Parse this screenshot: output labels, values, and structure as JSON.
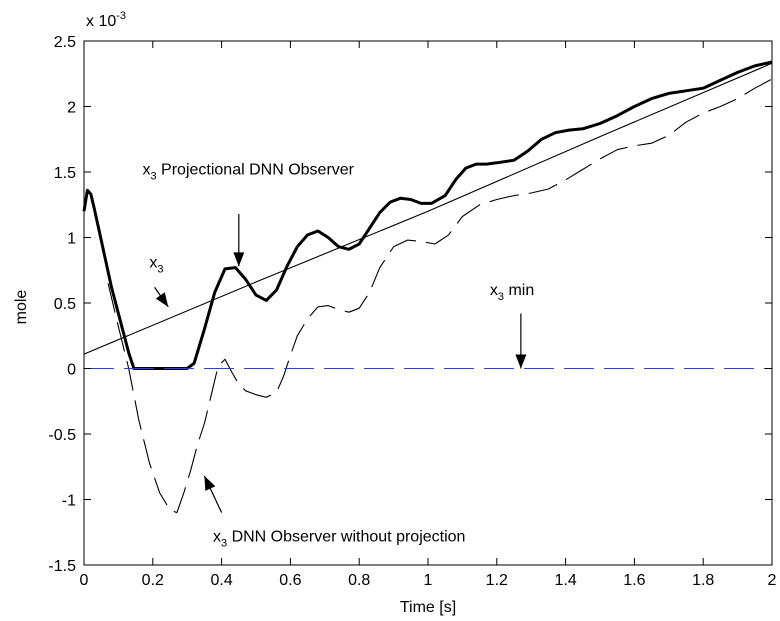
{
  "chart_data": {
    "type": "line",
    "xlabel": "Time [s]",
    "ylabel": "mole",
    "exponent_label": {
      "base": "x 10",
      "exp": "-3"
    },
    "xlim": [
      0,
      2
    ],
    "ylim": [
      -1.5,
      2.5
    ],
    "x_ticks": [
      0,
      0.2,
      0.4,
      0.6,
      0.8,
      1,
      1.2,
      1.4,
      1.6,
      1.8,
      2
    ],
    "x_tick_labels": [
      "0",
      "0.2",
      "0.4",
      "0.6",
      "0.8",
      "1",
      "1.2",
      "1.4",
      "1.6",
      "1.8",
      "2"
    ],
    "y_ticks": [
      -1.5,
      -1,
      -0.5,
      0,
      0.5,
      1,
      1.5,
      2,
      2.5
    ],
    "y_tick_labels": [
      "-1.5",
      "-1",
      "-0.5",
      "0",
      "0.5",
      "1",
      "1.5",
      "2",
      "2.5"
    ],
    "grid": false,
    "series": [
      {
        "key": "x3",
        "style": "thin-solid",
        "color": "#000000",
        "x": [
          0,
          0.5,
          1,
          1.5,
          2
        ],
        "y": [
          0.11,
          0.66,
          1.2,
          1.77,
          2.33
        ]
      },
      {
        "key": "projectional",
        "style": "thick-solid",
        "color": "#000000",
        "x": [
          0,
          0.01,
          0.02,
          0.03,
          0.05,
          0.08,
          0.1,
          0.13,
          0.145,
          0.2,
          0.25,
          0.3,
          0.32,
          0.35,
          0.38,
          0.41,
          0.44,
          0.47,
          0.5,
          0.53,
          0.56,
          0.59,
          0.62,
          0.65,
          0.68,
          0.71,
          0.74,
          0.77,
          0.8,
          0.83,
          0.86,
          0.89,
          0.92,
          0.95,
          0.98,
          1.01,
          1.05,
          1.08,
          1.11,
          1.14,
          1.17,
          1.2,
          1.25,
          1.29,
          1.33,
          1.37,
          1.41,
          1.45,
          1.5,
          1.55,
          1.6,
          1.65,
          1.7,
          1.75,
          1.8,
          1.85,
          1.9,
          1.95,
          2
        ],
        "y": [
          1.2,
          1.36,
          1.33,
          1.22,
          0.98,
          0.62,
          0.42,
          0.12,
          0.0,
          0.0,
          0.0,
          0.0,
          0.04,
          0.3,
          0.58,
          0.76,
          0.77,
          0.68,
          0.56,
          0.52,
          0.6,
          0.78,
          0.93,
          1.02,
          1.05,
          1.0,
          0.93,
          0.91,
          0.95,
          1.07,
          1.19,
          1.27,
          1.3,
          1.29,
          1.26,
          1.26,
          1.32,
          1.44,
          1.53,
          1.56,
          1.56,
          1.57,
          1.59,
          1.66,
          1.75,
          1.8,
          1.82,
          1.83,
          1.87,
          1.93,
          2.0,
          2.06,
          2.1,
          2.12,
          2.14,
          2.2,
          2.26,
          2.31,
          2.34
        ]
      },
      {
        "key": "without_projection",
        "style": "thin-dashed",
        "color": "#000000",
        "x": [
          0.07,
          0.1,
          0.13,
          0.16,
          0.19,
          0.22,
          0.25,
          0.27,
          0.29,
          0.31,
          0.33,
          0.35,
          0.37,
          0.39,
          0.41,
          0.43,
          0.45,
          0.47,
          0.5,
          0.53,
          0.56,
          0.58,
          0.6,
          0.62,
          0.65,
          0.68,
          0.71,
          0.74,
          0.77,
          0.8,
          0.83,
          0.86,
          0.9,
          0.94,
          0.98,
          1.02,
          1.06,
          1.1,
          1.15,
          1.2,
          1.25,
          1.3,
          1.35,
          1.4,
          1.45,
          1.5,
          1.55,
          1.6,
          1.65,
          1.7,
          1.75,
          1.8,
          1.85,
          1.9,
          1.95,
          2
        ],
        "y": [
          0.65,
          0.32,
          0.0,
          -0.4,
          -0.72,
          -0.95,
          -1.08,
          -1.1,
          -0.95,
          -0.78,
          -0.58,
          -0.42,
          -0.2,
          0.02,
          0.07,
          -0.03,
          -0.12,
          -0.17,
          -0.2,
          -0.22,
          -0.18,
          -0.06,
          0.1,
          0.25,
          0.38,
          0.47,
          0.48,
          0.45,
          0.43,
          0.46,
          0.58,
          0.77,
          0.93,
          0.98,
          0.97,
          0.95,
          1.02,
          1.16,
          1.25,
          1.29,
          1.32,
          1.34,
          1.37,
          1.44,
          1.52,
          1.6,
          1.67,
          1.7,
          1.72,
          1.78,
          1.88,
          1.95,
          2.0,
          2.06,
          2.14,
          2.21
        ]
      },
      {
        "key": "x3_min",
        "style": "blue-dashed",
        "color": "#3344aa",
        "x": [
          0,
          2
        ],
        "y": [
          0,
          0
        ]
      }
    ],
    "annotations": [
      {
        "id": "proj",
        "label_main": "x",
        "label_sub": "3",
        "label_rest": " Projectional DNN Observer",
        "text_x": 0.17,
        "text_y": 1.48,
        "arrow_from": [
          0.45,
          1.18
        ],
        "arrow_to": [
          0.45,
          0.78
        ]
      },
      {
        "id": "x3",
        "label_main": "x",
        "label_sub": "3",
        "label_rest": "",
        "text_x": 0.19,
        "text_y": 0.77,
        "arrow_from": [
          0.205,
          0.62
        ],
        "arrow_to": [
          0.245,
          0.47
        ]
      },
      {
        "id": "x3min",
        "label_main": "x",
        "label_sub": "3",
        "label_rest": " min",
        "text_x": 1.18,
        "text_y": 0.56,
        "arrow_from": [
          1.27,
          0.42
        ],
        "arrow_to": [
          1.27,
          0.0
        ]
      },
      {
        "id": "noproj",
        "label_main": "x",
        "label_sub": "3",
        "label_rest": " DNN Observer without projection",
        "text_x": 0.375,
        "text_y": -1.32,
        "arrow_from": [
          0.4,
          -1.1
        ],
        "arrow_to": [
          0.35,
          -0.82
        ]
      }
    ]
  }
}
